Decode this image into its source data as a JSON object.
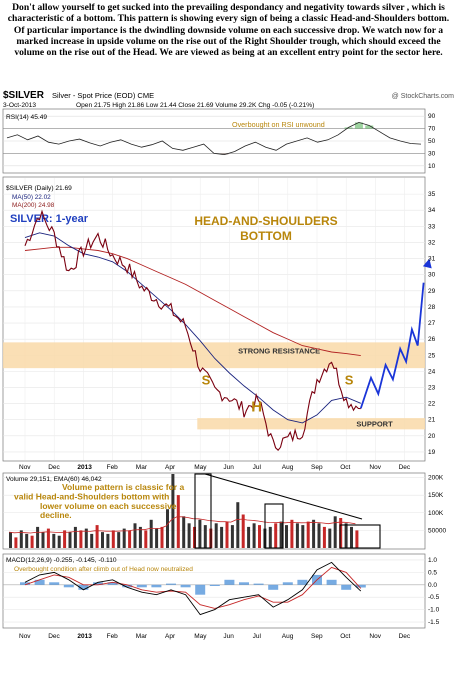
{
  "caption": "Don't allow yourself to get sucked into the prevailing despondancy and negativity towards silver , which is characteristic of a bottom. This pattern is showing every sign of being a classic Head-and-Shoulders bottom. Of particular importance is the dwindling downside volume on each successive drop. We watch now for a marked increase in upside volume on the rise out of the Right Shoulder trough, which should exceed the volume on the rise out of the Head. We are viewed as being at an excellent entry point for the sector here.",
  "chart_data": {
    "type": "line",
    "header": {
      "symbol": "$SILVER",
      "name": "Silver - Spot Price (EOD) CME",
      "copyright": "@ StockCharts.com",
      "date": "3-Oct-2013",
      "ohlc": "Open 21.75  High 21.86  Low 21.44  Close 21.69  Volume 29.2K  Chg -0.05 (-0.21%)"
    },
    "x_labels": [
      "Nov",
      "Dec",
      "2013",
      "Feb",
      "Mar",
      "Apr",
      "May",
      "Jun",
      "Jul",
      "Aug",
      "Sep",
      "Oct",
      "Nov",
      "Dec"
    ],
    "rsi": {
      "legend": "RSI(14) 45.49",
      "note": "Overbought on RSI unwound",
      "ticks": [
        90,
        70,
        50,
        30,
        10
      ],
      "ylim": [
        0,
        100
      ],
      "values": [
        55,
        60,
        52,
        58,
        48,
        45,
        50,
        53,
        47,
        42,
        48,
        52,
        45,
        40,
        44,
        50,
        38,
        35,
        40,
        45,
        30,
        28,
        33,
        42,
        48,
        40,
        35,
        45,
        50,
        55,
        48,
        52,
        60,
        72,
        80,
        75,
        65,
        55,
        50,
        46,
        45
      ]
    },
    "price": {
      "legend_main": "$SILVER (Daily) 21.69",
      "legend_ma50": "MA(50) 22.02",
      "legend_ma200": "MA(200) 24.98",
      "label_period": "SILVER: 1-year",
      "pattern_title": "HEAD-AND-SHOULDERS",
      "pattern_sub": "BOTTOM",
      "resistance_label": "STRONG RESISTANCE",
      "support_label": "SUPPORT",
      "left_shoulder": "S",
      "head": "H",
      "right_shoulder": "S",
      "ticks": [
        35,
        34,
        33,
        32,
        31,
        30,
        29,
        28,
        27,
        26,
        25,
        24,
        23,
        22,
        21,
        20,
        19
      ],
      "ylim": [
        18.5,
        36.0
      ],
      "resistance_band": [
        24.2,
        25.8
      ],
      "support_band": [
        20.4,
        21.1
      ],
      "x": [
        0,
        0.5,
        1,
        1.5,
        2,
        2.5,
        3,
        3.5,
        4,
        4.5,
        5,
        5.5,
        6,
        6.5,
        7,
        7.5,
        8,
        8.5,
        9,
        9.5,
        10,
        10.5,
        11,
        11.5
      ],
      "close": [
        31.8,
        33.8,
        32.5,
        30.2,
        31.5,
        32.4,
        31.2,
        30.5,
        29.2,
        28.5,
        27.8,
        26.8,
        24.2,
        22.8,
        22.4,
        21.6,
        22.2,
        19.4,
        19.8,
        20.3,
        23.5,
        24.8,
        22.2,
        21.69
      ],
      "ma50": [
        32.3,
        32.6,
        32.4,
        31.8,
        31.3,
        31.1,
        30.8,
        30.2,
        29.4,
        28.6,
        27.8,
        26.9,
        25.9,
        24.8,
        23.9,
        23.1,
        22.4,
        21.6,
        21.0,
        20.8,
        21.3,
        22.2,
        22.4,
        22.02
      ],
      "ma200": [
        31.5,
        31.6,
        31.7,
        31.7,
        31.6,
        31.5,
        31.3,
        31.0,
        30.6,
        30.2,
        29.8,
        29.4,
        28.9,
        28.4,
        27.9,
        27.4,
        26.9,
        26.4,
        26.0,
        25.6,
        25.4,
        25.2,
        25.1,
        24.98
      ],
      "projection": {
        "x": [
          11.5,
          11.85,
          12.1,
          12.35,
          12.6,
          12.85,
          13.05,
          13.25,
          13.45,
          13.65,
          13.85
        ],
        "y": [
          21.7,
          23.6,
          22.6,
          24.4,
          23.5,
          25.4,
          24.6,
          26.6,
          25.6,
          29.5,
          31.0
        ]
      }
    },
    "volume": {
      "legend": "Volume 29,151, EMA(60) 46,042",
      "note": "Volume pattern is classic for a valid Head-and-Shoulders bottom with lower volume on each successive decline.",
      "ticks": [
        "200K",
        "150K",
        "100K",
        "50000"
      ],
      "ylim": [
        0,
        210000
      ],
      "values": [
        45000,
        30000,
        50000,
        40000,
        35000,
        60000,
        45000,
        55000,
        40000,
        35000,
        50000,
        45000,
        60000,
        50000,
        55000,
        40000,
        65000,
        45000,
        40000,
        50000,
        45000,
        55000,
        50000,
        70000,
        60000,
        50000,
        80000,
        55000,
        60000,
        110000,
        210000,
        150000,
        90000,
        70000,
        60000,
        80000,
        65000,
        55000,
        70000,
        60000,
        75000,
        65000,
        130000,
        95000,
        60000,
        70000,
        65000,
        55000,
        60000,
        70000,
        75000,
        65000,
        80000,
        70000,
        65000,
        75000,
        80000,
        70000,
        60000,
        55000,
        90000,
        85000,
        70000,
        60000,
        50000
      ]
    },
    "macd": {
      "legend": "MACD(12,26,9) -0.255, -0.145, -0.110",
      "note": "Overbought condition after climb out of Head now neutralized",
      "ticks": [
        1.0,
        0.5,
        0.0,
        -0.5,
        -1.0,
        -1.5
      ],
      "ylim": [
        -1.7,
        1.2
      ],
      "macd": [
        0.1,
        0.4,
        0.5,
        0.2,
        -0.2,
        0.1,
        0.2,
        -0.1,
        -0.3,
        -0.4,
        -0.2,
        -0.4,
        -1.2,
        -1.0,
        -0.6,
        -0.5,
        -0.4,
        -0.9,
        -0.6,
        -0.2,
        0.6,
        0.9,
        0.3,
        -0.255
      ],
      "signal": [
        0.0,
        0.2,
        0.4,
        0.3,
        0.0,
        0.0,
        0.1,
        0.0,
        -0.2,
        -0.3,
        -0.25,
        -0.3,
        -0.8,
        -0.95,
        -0.8,
        -0.6,
        -0.45,
        -0.7,
        -0.7,
        -0.4,
        0.2,
        0.7,
        0.5,
        -0.145
      ]
    }
  }
}
